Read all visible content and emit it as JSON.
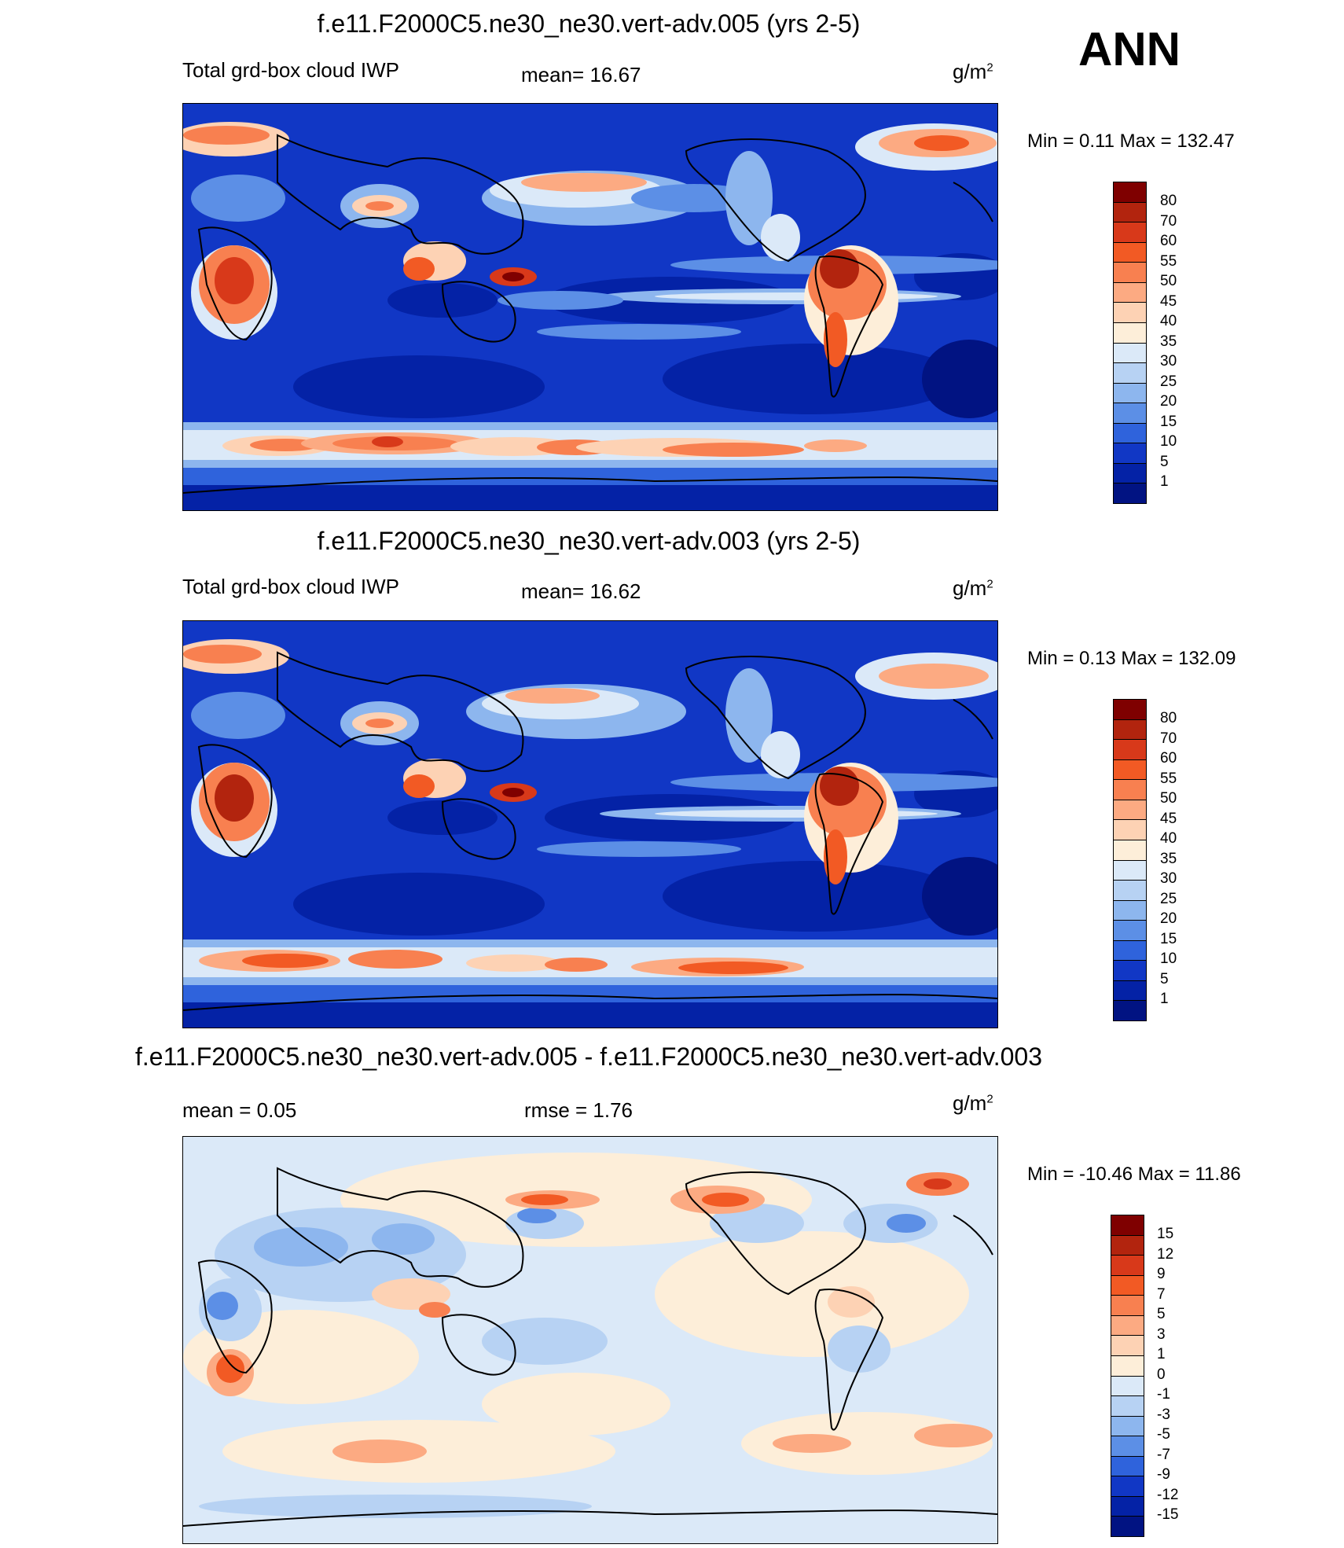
{
  "season": "ANN",
  "panels": [
    {
      "title": "f.e11.F2000C5.ne30_ne30.vert-adv.005 (yrs 2-5)",
      "left_label": "Total grd-box cloud IWP",
      "center_label": "mean=  16.67",
      "units": "g/m",
      "units_sup": "2",
      "minmax": "Min =   0.11 Max = 132.47",
      "levels": [
        "80",
        "70",
        "60",
        "55",
        "50",
        "45",
        "40",
        "35",
        "30",
        "25",
        "20",
        "15",
        "10",
        "5",
        "1"
      ],
      "colors": [
        "#7f0000",
        "#b2240e",
        "#d8391a",
        "#f25a24",
        "#f88050",
        "#fcaa82",
        "#fdd2b4",
        "#fdeed9",
        "#dbe9f8",
        "#b7d2f3",
        "#8db6ee",
        "#5c8fe6",
        "#2f63dc",
        "#1137c5",
        "#0422a6",
        "#011382"
      ]
    },
    {
      "title": "f.e11.F2000C5.ne30_ne30.vert-adv.003 (yrs 2-5)",
      "left_label": "Total grd-box cloud IWP",
      "center_label": "mean=  16.62",
      "units": "g/m",
      "units_sup": "2",
      "minmax": "Min =   0.13 Max = 132.09",
      "levels": [
        "80",
        "70",
        "60",
        "55",
        "50",
        "45",
        "40",
        "35",
        "30",
        "25",
        "20",
        "15",
        "10",
        "5",
        "1"
      ],
      "colors": [
        "#7f0000",
        "#b2240e",
        "#d8391a",
        "#f25a24",
        "#f88050",
        "#fcaa82",
        "#fdd2b4",
        "#fdeed9",
        "#dbe9f8",
        "#b7d2f3",
        "#8db6ee",
        "#5c8fe6",
        "#2f63dc",
        "#1137c5",
        "#0422a6",
        "#011382"
      ]
    },
    {
      "title": "f.e11.F2000C5.ne30_ne30.vert-adv.005 - f.e11.F2000C5.ne30_ne30.vert-adv.003",
      "left_label": "mean =   0.05",
      "center_label": "rmse =   1.76",
      "units": "g/m",
      "units_sup": "2",
      "minmax": "Min = -10.46 Max =  11.86",
      "levels": [
        "15",
        "12",
        "9",
        "7",
        "5",
        "3",
        "1",
        "0",
        "-1",
        "-3",
        "-5",
        "-7",
        "-9",
        "-12",
        "-15"
      ],
      "colors": [
        "#7f0000",
        "#b2240e",
        "#d8391a",
        "#f25a24",
        "#f88050",
        "#fcaa82",
        "#fdd2b4",
        "#fdeed9",
        "#dbe9f8",
        "#b7d2f3",
        "#8db6ee",
        "#5c8fe6",
        "#2f63dc",
        "#1137c5",
        "#0422a6",
        "#011382"
      ]
    }
  ]
}
